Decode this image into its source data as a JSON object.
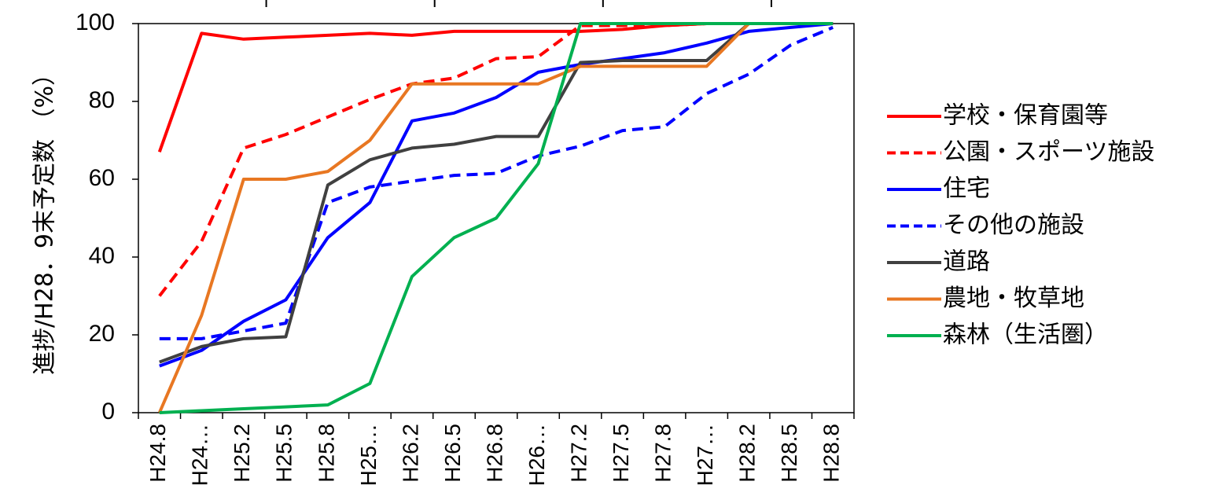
{
  "chart_data": {
    "type": "line",
    "title": "",
    "xlabel": "",
    "ylabel": "進捗/H28．9末予定数 （%）",
    "ylim": [
      0,
      100
    ],
    "yticks": [
      "0",
      "20",
      "40",
      "60",
      "80",
      "100"
    ],
    "grid": false,
    "legend_position": "right",
    "categories": [
      "H24.8",
      "H24…",
      "H25.2",
      "H25.5",
      "H25.8",
      "H25…",
      "H26.2",
      "H26.5",
      "H26.8",
      "H26…",
      "H27.2",
      "H27.5",
      "H27.8",
      "H27…",
      "H28.2",
      "H28.5",
      "H28.8"
    ],
    "series": [
      {
        "name": "学校・保育園等",
        "color": "#ff0000",
        "dash": "solid",
        "values": [
          67,
          97.5,
          96,
          96.5,
          97,
          97.5,
          97,
          98,
          98,
          98,
          98,
          98.5,
          99.5,
          100,
          100,
          100,
          100
        ]
      },
      {
        "name": "公園・スポーツ施設",
        "color": "#ff0000",
        "dash": "dashed",
        "values": [
          30,
          44,
          68,
          71.5,
          76,
          80.5,
          84.5,
          86,
          91,
          91.5,
          99.5,
          99.5,
          99.5,
          100,
          100,
          100,
          100
        ]
      },
      {
        "name": "住宅",
        "color": "#0000ff",
        "dash": "solid",
        "values": [
          12,
          16,
          23.5,
          29,
          45,
          54,
          75,
          77,
          81,
          87.5,
          89.5,
          91,
          92.5,
          95,
          98,
          99,
          100
        ]
      },
      {
        "name": "その他の施設",
        "color": "#0000ff",
        "dash": "dashed",
        "values": [
          19,
          19,
          21,
          23,
          54,
          58,
          59.5,
          61,
          61.5,
          66,
          68.5,
          72.5,
          73.5,
          82,
          87,
          94.5,
          99
        ]
      },
      {
        "name": "道路",
        "color": "#404040",
        "dash": "solid",
        "values": [
          13,
          17,
          19,
          19.5,
          58.5,
          65,
          68,
          69,
          71,
          71,
          90,
          90.5,
          90.5,
          90.5,
          100,
          100,
          100
        ]
      },
      {
        "name": "農地・牧草地",
        "color": "#e87722",
        "dash": "solid",
        "values": [
          0,
          25,
          60,
          60,
          62,
          70,
          84.5,
          84.5,
          84.5,
          84.5,
          89,
          89,
          89,
          89,
          100,
          100,
          100
        ]
      },
      {
        "name": "森林（生活圏）",
        "color": "#00b050",
        "dash": "solid",
        "values": [
          0,
          0.5,
          1,
          1.5,
          2,
          7.5,
          35,
          45,
          50,
          64,
          100,
          100,
          100,
          100,
          100,
          100,
          100
        ]
      }
    ]
  }
}
